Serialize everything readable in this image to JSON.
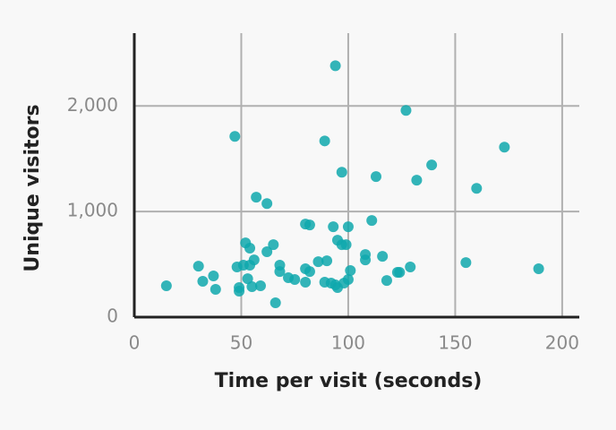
{
  "chart_data": {
    "type": "scatter",
    "x_label": "Time per visit (seconds)",
    "y_label": "Unique visitors",
    "xlim": [
      0,
      208
    ],
    "ylim": [
      0,
      2690
    ],
    "xticks": [
      0,
      50,
      100,
      150,
      200
    ],
    "yticks": [
      0,
      {
        "value": 1000,
        "label": "1,000"
      },
      {
        "value": 2000,
        "label": "2,000"
      }
    ],
    "grid": true,
    "color": "#0fa8ad",
    "x": [
      15,
      30,
      32,
      37,
      38,
      47,
      48,
      49,
      49,
      51,
      52,
      53,
      54,
      54,
      55,
      56,
      57,
      59,
      62,
      62,
      65,
      66,
      68,
      68,
      72,
      75,
      80,
      80,
      80,
      82,
      82,
      86,
      89,
      89,
      90,
      92,
      93,
      94,
      94,
      95,
      95,
      97,
      97,
      98,
      99,
      100,
      100,
      101,
      108,
      108,
      111,
      113,
      116,
      118,
      123,
      124,
      127,
      129,
      132,
      139,
      155,
      160,
      173,
      189
    ],
    "y": [
      297,
      483,
      339,
      390,
      263,
      1712,
      475,
      246,
      280,
      492,
      703,
      364,
      492,
      653,
      288,
      542,
      1136,
      297,
      619,
      1076,
      686,
      136,
      492,
      432,
      373,
      356,
      881,
      458,
      331,
      873,
      432,
      525,
      1669,
      331,
      534,
      322,
      856,
      2381,
      305,
      729,
      280,
      686,
      1373,
      322,
      686,
      856,
      356,
      441,
      593,
      542,
      915,
      1331,
      576,
      347,
      424,
      424,
      1958,
      475,
      1297,
      1441,
      517,
      1220,
      1610,
      458
    ]
  }
}
